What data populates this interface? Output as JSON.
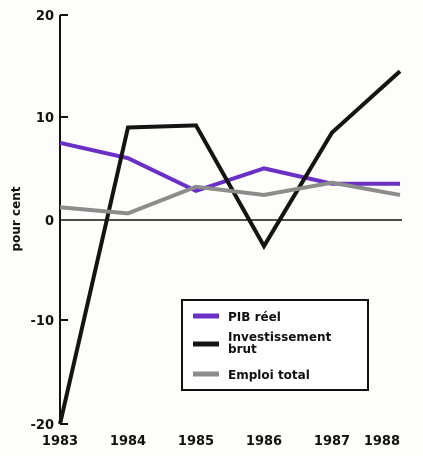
{
  "chart_data": {
    "type": "line",
    "title": "",
    "xlabel": "",
    "ylabel": "pour cent",
    "x": [
      "1983",
      "1984",
      "1985",
      "1986",
      "1987",
      "1988"
    ],
    "ylim": [
      -20,
      20
    ],
    "yticks": [
      "20",
      "10",
      "0",
      "-10",
      "-20"
    ],
    "grid": false,
    "zero_line": true,
    "legend_position": "bottom-right",
    "series": [
      {
        "name": "PIB réel",
        "color": "#6a2fc4",
        "values": [
          7.5,
          6.0,
          2.8,
          5.0,
          3.5,
          3.5
        ]
      },
      {
        "name": "Investissement brut",
        "color": "#141414",
        "values": [
          -20.0,
          9.0,
          9.2,
          -2.6,
          8.5,
          14.5
        ]
      },
      {
        "name": "Emploi total",
        "color": "#8c8c8c",
        "values": [
          1.2,
          0.6,
          3.2,
          2.4,
          3.6,
          2.4
        ]
      }
    ]
  }
}
